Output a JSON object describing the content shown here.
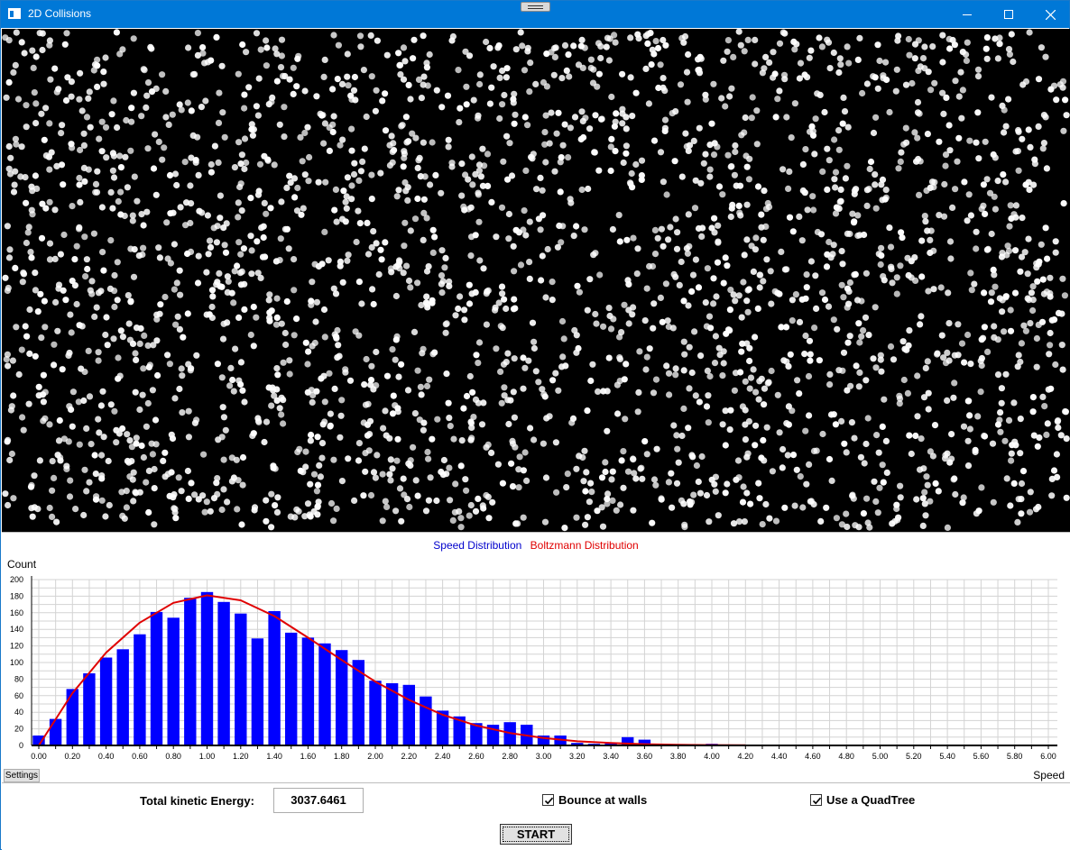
{
  "window": {
    "title": "2D Collisions",
    "controls": [
      "minimize-icon",
      "maximize-icon",
      "close-icon"
    ]
  },
  "simulation": {
    "background": "#000000",
    "particle_color": "#ffffff"
  },
  "chart": {
    "legend": {
      "speed": "Speed Distribution",
      "boltzmann": "Boltzmann Distribution"
    },
    "colors": {
      "speed": "#0000ff",
      "boltzmann": "#e00000"
    },
    "settings_label": "Settings"
  },
  "chart_data": {
    "type": "bar",
    "ylabel": "Count",
    "xlabel": "Speed",
    "ylim": [
      0,
      200
    ],
    "xlim": [
      0,
      6.0
    ],
    "yticks": [
      "0",
      "20",
      "40",
      "60",
      "80",
      "100",
      "120",
      "140",
      "160",
      "180",
      "200"
    ],
    "xticks": [
      "0.00",
      "0.20",
      "0.40",
      "0.60",
      "0.80",
      "1.00",
      "1.20",
      "1.40",
      "1.60",
      "1.80",
      "2.00",
      "2.20",
      "2.40",
      "2.60",
      "2.80",
      "3.00",
      "3.20",
      "3.40",
      "3.60",
      "3.80",
      "4.00",
      "4.20",
      "4.40",
      "4.60",
      "4.80",
      "5.00",
      "5.20",
      "5.40",
      "5.60",
      "5.80",
      "6.00"
    ],
    "grid": true,
    "series": [
      {
        "name": "Speed Distribution",
        "type": "bar",
        "x": [
          0.0,
          0.1,
          0.2,
          0.3,
          0.4,
          0.5,
          0.6,
          0.7,
          0.8,
          0.9,
          1.0,
          1.1,
          1.2,
          1.3,
          1.4,
          1.5,
          1.6,
          1.7,
          1.8,
          1.9,
          2.0,
          2.1,
          2.2,
          2.3,
          2.4,
          2.5,
          2.6,
          2.7,
          2.8,
          2.9,
          3.0,
          3.1,
          3.2,
          3.3,
          3.4,
          3.5,
          3.6,
          3.7,
          3.8,
          3.9,
          4.0
        ],
        "values": [
          12,
          32,
          68,
          87,
          106,
          116,
          134,
          161,
          154,
          178,
          185,
          173,
          159,
          129,
          162,
          136,
          130,
          123,
          115,
          103,
          78,
          75,
          73,
          59,
          42,
          35,
          27,
          25,
          28,
          25,
          12,
          12,
          3,
          2,
          3,
          10,
          7,
          2,
          1,
          1,
          2
        ]
      },
      {
        "name": "Boltzmann Distribution",
        "type": "line",
        "x": [
          0.0,
          0.2,
          0.4,
          0.6,
          0.8,
          1.0,
          1.2,
          1.4,
          1.6,
          1.8,
          2.0,
          2.2,
          2.4,
          2.6,
          2.8,
          3.0,
          3.2,
          3.4,
          3.6,
          3.8,
          4.0,
          4.2
        ],
        "values": [
          0,
          63,
          112,
          148,
          172,
          181,
          175,
          156,
          130,
          103,
          77,
          55,
          37,
          24,
          15,
          9,
          5,
          3,
          1.5,
          0.8,
          0.4,
          0.2
        ]
      }
    ]
  },
  "controls": {
    "ke_label": "Total kinetic Energy:",
    "ke_value": "3037.6461",
    "bounce_label": "Bounce at walls",
    "bounce_checked": true,
    "quadtree_label": "Use a QuadTree",
    "quadtree_checked": true,
    "start_label": "START"
  }
}
